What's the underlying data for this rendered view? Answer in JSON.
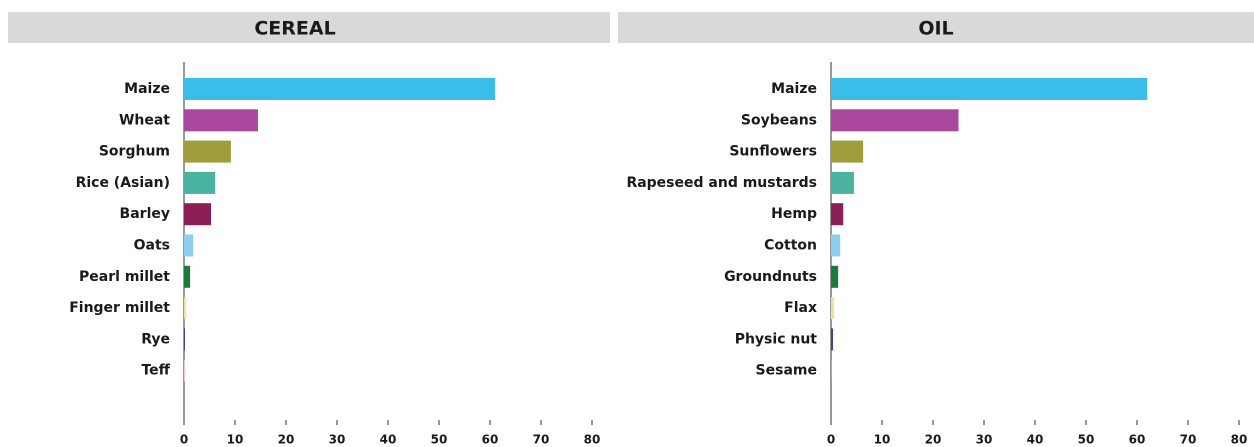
{
  "chart_data": [
    {
      "type": "hbar",
      "title": "CEREAL",
      "categories": [
        "Maize",
        "Wheat",
        "Sorghum",
        "Rice (Asian)",
        "Barley",
        "Oats",
        "Pearl millet",
        "Finger millet",
        "Rye",
        "Teff"
      ],
      "values": [
        61,
        14.5,
        9.2,
        6.1,
        5.3,
        1.8,
        1.2,
        0.4,
        0.2,
        0.1
      ],
      "colors": [
        "#3bbdea",
        "#a9479c",
        "#a09e3a",
        "#49b3a0",
        "#8c1e56",
        "#8fcdee",
        "#1e7a3a",
        "#f2e0a0",
        "#4b3f8f",
        "#e58a9a"
      ],
      "xlim": [
        0,
        80
      ],
      "xticks": [
        0,
        10,
        20,
        30,
        40,
        50,
        60,
        70,
        80
      ]
    },
    {
      "type": "hbar",
      "title": "OIL",
      "categories": [
        "Maize",
        "Soybeans",
        "Sunflowers",
        "Rapeseed and mustards",
        "Hemp",
        "Cotton",
        "Groundnuts",
        "Flax",
        "Physic nut",
        "Sesame"
      ],
      "values": [
        62,
        25,
        6.3,
        4.5,
        2.4,
        1.8,
        1.4,
        0.6,
        0.4,
        0.2
      ],
      "colors": [
        "#3bbdea",
        "#a9479c",
        "#a09e3a",
        "#49b3a0",
        "#8c1e56",
        "#8fcdee",
        "#1e7a3a",
        "#f2e0a0",
        "#4b3f8f",
        "#e58a9a"
      ],
      "xlim": [
        0,
        80
      ],
      "xticks": [
        0,
        10,
        20,
        30,
        40,
        50,
        60,
        70,
        80
      ]
    }
  ]
}
